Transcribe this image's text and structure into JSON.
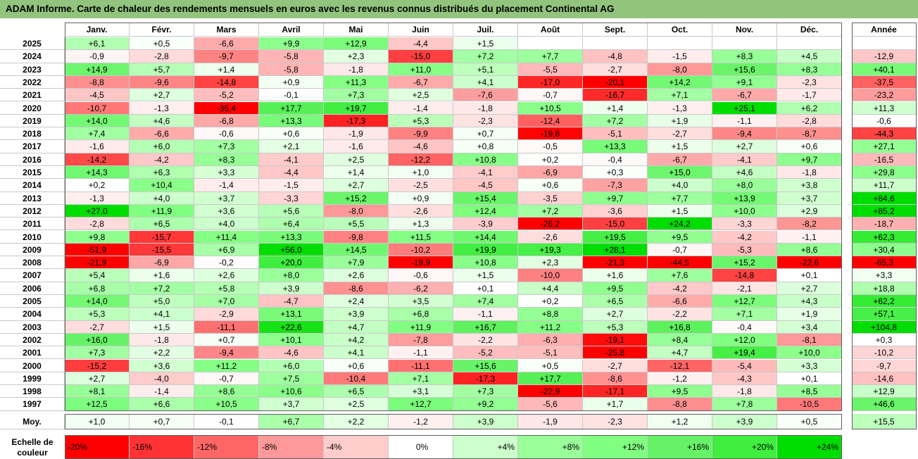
{
  "title": "ADAM Informe. Carte de chaleur des rendements mensuels en euros avec les revenus connus distribués du placement Continental AG",
  "chart_data": {
    "type": "heatmap",
    "title": "ADAM Informe. Carte de chaleur des rendements mensuels en euros avec les revenus connus distribués du placement Continental AG",
    "columns": [
      "Janv.",
      "Févr.",
      "Mars",
      "Avril",
      "Mai",
      "Juin",
      "Juil.",
      "Août",
      "Sept.",
      "Oct.",
      "Nov.",
      "Déc."
    ],
    "year_column_label": "Année",
    "rows": [
      {
        "year": "2025",
        "values": [
          "+6,1",
          "+0,5",
          "-6,6",
          "+9,9",
          "+12,9",
          "-4,4",
          "+1,5",
          "",
          "",
          "",
          "",
          ""
        ],
        "annual": ""
      },
      {
        "year": "2024",
        "values": [
          "-0,9",
          "-2,8",
          "-9,7",
          "-5,8",
          "+2,3",
          "-15,0",
          "+7,2",
          "+7,7",
          "-4,8",
          "-1,5",
          "+8,3",
          "+4,5"
        ],
        "annual": "-12,9"
      },
      {
        "year": "2023",
        "values": [
          "+14,9",
          "+5,7",
          "+1,4",
          "-5,8",
          "-1,8",
          "+11,0",
          "+5,1",
          "-5,5",
          "-2,7",
          "-8,0",
          "+15,6",
          "+8,3"
        ],
        "annual": "+40,1"
      },
      {
        "year": "2022",
        "values": [
          "-8,8",
          "-9,6",
          "-14,8",
          "+0,9",
          "+11,3",
          "-6,7",
          "+4,1",
          "-17,0",
          "-20,1",
          "+14,2",
          "+9,1",
          "-2,3"
        ],
        "annual": "-37,5"
      },
      {
        "year": "2021",
        "values": [
          "-4,5",
          "+2,7",
          "-5,2",
          "-0,1",
          "+7,3",
          "+2,5",
          "-7,6",
          "-0,7",
          "-16,7",
          "+7,1",
          "-6,7",
          "-1,7"
        ],
        "annual": "-23,2"
      },
      {
        "year": "2020",
        "values": [
          "-10,7",
          "-1,3",
          "-35,4",
          "+17,7",
          "+19,7",
          "-1,4",
          "-1,8",
          "+10,5",
          "+1,4",
          "-1,3",
          "+25,1",
          "+6,2"
        ],
        "annual": "+11,3"
      },
      {
        "year": "2019",
        "values": [
          "+14,0",
          "+4,6",
          "-6,8",
          "+13,3",
          "-17,3",
          "+5,3",
          "-2,3",
          "-12,4",
          "+7,2",
          "+1,9",
          "-1,1",
          "-2,8"
        ],
        "annual": "-0,6"
      },
      {
        "year": "2018",
        "values": [
          "+7,4",
          "-6,6",
          "-0,6",
          "+0,6",
          "-1,9",
          "-9,9",
          "+0,7",
          "-19,8",
          "-5,1",
          "-2,7",
          "-9,4",
          "-8,7"
        ],
        "annual": "-44,3"
      },
      {
        "year": "2017",
        "values": [
          "-1,6",
          "+6,0",
          "+7,3",
          "+2,1",
          "-1,6",
          "-4,6",
          "+0,8",
          "-0,5",
          "+13,3",
          "+1,5",
          "+2,7",
          "+0,6"
        ],
        "annual": "+27,1"
      },
      {
        "year": "2016",
        "values": [
          "-14,2",
          "-4,2",
          "+8,3",
          "-4,1",
          "+2,5",
          "-12,2",
          "+10,8",
          "+0,2",
          "-0,4",
          "-6,7",
          "-4,1",
          "+9,7"
        ],
        "annual": "-16,5"
      },
      {
        "year": "2015",
        "values": [
          "+14,3",
          "+6,3",
          "+3,3",
          "-4,4",
          "+1,4",
          "+1,0",
          "-4,1",
          "-6,9",
          "+0,3",
          "+15,0",
          "+4,6",
          "-1,8"
        ],
        "annual": "+29,8"
      },
      {
        "year": "2014",
        "values": [
          "+0,2",
          "+10,4",
          "-1,4",
          "-1,5",
          "+2,7",
          "-2,5",
          "-4,5",
          "+0,6",
          "-7,3",
          "+4,0",
          "+8,0",
          "+3,8"
        ],
        "annual": "+11,7"
      },
      {
        "year": "2013",
        "values": [
          "-1,3",
          "+4,0",
          "+3,7",
          "-3,3",
          "+15,2",
          "+0,9",
          "+15,4",
          "-3,5",
          "+9,7",
          "+7,7",
          "+13,9",
          "+3,7"
        ],
        "annual": "+84,6"
      },
      {
        "year": "2012",
        "values": [
          "+27,0",
          "+11,9",
          "+3,6",
          "+5,6",
          "-8,0",
          "-2,6",
          "+12,4",
          "+7,2",
          "-3,6",
          "+1,5",
          "+10,0",
          "+2,9"
        ],
        "annual": "+85,2"
      },
      {
        "year": "2011",
        "values": [
          "-2,8",
          "+6,5",
          "+4,0",
          "+6,4",
          "+5,5",
          "+1,3",
          "-3,9",
          "-26,2",
          "-15,0",
          "+24,2",
          "-3,3",
          "-8,2"
        ],
        "annual": "-18,7"
      },
      {
        "year": "2010",
        "values": [
          "+9,8",
          "-15,7",
          "+11,4",
          "+13,3",
          "-9,8",
          "+11,5",
          "+14,4",
          "-2,6",
          "+19,5",
          "+9,5",
          "-4,2",
          "-1,1"
        ],
        "annual": "+62,3"
      },
      {
        "year": "2009",
        "values": [
          "-51,9",
          "-15,5",
          "+6,9",
          "+56,0",
          "+14,5",
          "-10,2",
          "+19,9",
          "+19,3",
          "+28,1",
          "-0,7",
          "-5,3",
          "+8,6"
        ],
        "annual": "+30,4"
      },
      {
        "year": "2008",
        "values": [
          "-21,9",
          "-6,9",
          "-0,2",
          "+20,0",
          "+7,9",
          "-19,9",
          "+10,8",
          "+2,3",
          "-21,3",
          "-44,5",
          "+15,2",
          "-22,6"
        ],
        "annual": "-65,3"
      },
      {
        "year": "2007",
        "values": [
          "+5,4",
          "+1,6",
          "+2,6",
          "+8,0",
          "+2,6",
          "-0,6",
          "+1,5",
          "-10,0",
          "+1,6",
          "+7,6",
          "-14,8",
          "+0,1"
        ],
        "annual": "+3,3"
      },
      {
        "year": "2006",
        "values": [
          "+6,8",
          "+7,2",
          "+5,8",
          "+3,9",
          "-8,6",
          "-6,2",
          "+0,1",
          "+4,4",
          "+9,5",
          "-4,2",
          "-2,1",
          "+2,7"
        ],
        "annual": "+18,8"
      },
      {
        "year": "2005",
        "values": [
          "+14,0",
          "+5,0",
          "+7,0",
          "-4,7",
          "+2,4",
          "+3,5",
          "+7,4",
          "+0,2",
          "+6,5",
          "-6,6",
          "+12,7",
          "+4,3"
        ],
        "annual": "+62,2"
      },
      {
        "year": "2004",
        "values": [
          "+5,3",
          "+4,1",
          "-2,9",
          "+13,1",
          "+3,9",
          "+6,8",
          "-1,1",
          "+8,8",
          "+2,7",
          "-2,2",
          "+7,1",
          "+1,9"
        ],
        "annual": "+57,1"
      },
      {
        "year": "2003",
        "values": [
          "-2,7",
          "+1,5",
          "-11,1",
          "+22,6",
          "+4,7",
          "+11,9",
          "+16,7",
          "+11,2",
          "+5,3",
          "+16,8",
          "-0,4",
          "+3,4"
        ],
        "annual": "+104,8"
      },
      {
        "year": "2002",
        "values": [
          "+16,0",
          "-1,8",
          "+0,7",
          "+10,1",
          "+4,2",
          "-7,8",
          "-2,2",
          "-6,3",
          "-19,1",
          "+8,4",
          "+12,0",
          "-8,1"
        ],
        "annual": "+0,3"
      },
      {
        "year": "2001",
        "values": [
          "+7,3",
          "+2,2",
          "-9,4",
          "-4,6",
          "+4,1",
          "-1,1",
          "-5,2",
          "-5,1",
          "-25,8",
          "+4,7",
          "+19,4",
          "+10,0"
        ],
        "annual": "-10,2"
      },
      {
        "year": "2000",
        "values": [
          "-15,2",
          "+3,6",
          "+11,2",
          "+6,0",
          "+0,6",
          "-11,1",
          "+15,6",
          "+0,5",
          "-2,7",
          "-12,1",
          "-5,4",
          "+3,3"
        ],
        "annual": "-9,7"
      },
      {
        "year": "1999",
        "values": [
          "+2,7",
          "-4,0",
          "-0,7",
          "+7,5",
          "-10,4",
          "+7,1",
          "-17,3",
          "+17,7",
          "-8,6",
          "-1,2",
          "-4,3",
          "+0,1"
        ],
        "annual": "-14,6"
      },
      {
        "year": "1998",
        "values": [
          "+8,1",
          "-1,4",
          "+8,6",
          "+10,6",
          "+6,5",
          "+3,1",
          "+7,3",
          "-22,9",
          "-17,1",
          "+9,5",
          "-1,8",
          "+8,5"
        ],
        "annual": "+12,9"
      },
      {
        "year": "1997",
        "values": [
          "+12,5",
          "+6,6",
          "+10,5",
          "+3,7",
          "+2,5",
          "+12,7",
          "+9,2",
          "-5,6",
          "+1,7",
          "-8,8",
          "+7,8",
          "-10,5"
        ],
        "annual": "+46,6"
      }
    ],
    "average": {
      "label": "Moy.",
      "values": [
        "+1,0",
        "+0,7",
        "-0,1",
        "+6,7",
        "+2,2",
        "-1,2",
        "+3,9",
        "-1,9",
        "-2,3",
        "+1,2",
        "+3,9",
        "+0,5"
      ],
      "annual": "+15,5"
    },
    "legend": {
      "label": "Echelle de couleur",
      "stops": [
        {
          "label": "-20%",
          "value": -20,
          "color": "#ff0000"
        },
        {
          "label": "-16%",
          "value": -16,
          "color": "#ff3333"
        },
        {
          "label": "-12%",
          "value": -12,
          "color": "#ff6666"
        },
        {
          "label": "-8%",
          "value": -8,
          "color": "#ff9999"
        },
        {
          "label": "-4%",
          "value": -4,
          "color": "#ffcccc"
        },
        {
          "label": "0%",
          "value": 0,
          "color": "#ffffff"
        },
        {
          "label": "+4%",
          "value": 4,
          "color": "#ccffcc"
        },
        {
          "label": "+8%",
          "value": 8,
          "color": "#99ff99"
        },
        {
          "label": "+12%",
          "value": 12,
          "color": "#80ff80"
        },
        {
          "label": "+16%",
          "value": 16,
          "color": "#66f266"
        },
        {
          "label": "+20%",
          "value": 20,
          "color": "#40ee40"
        },
        {
          "label": "+24%",
          "value": 24,
          "color": "#00dd00"
        }
      ]
    }
  }
}
